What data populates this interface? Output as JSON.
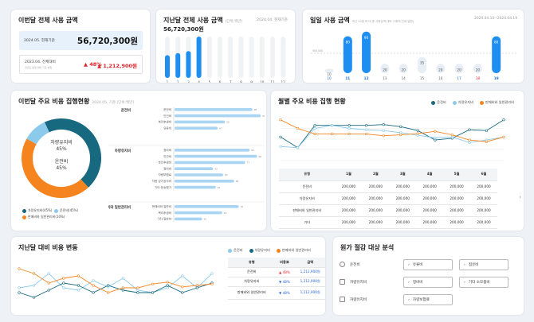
{
  "card1": {
    "title": "이번달 전체 사용 금액",
    "current_label": "2024.05. 현재기준",
    "current_amount": "56,720,300원",
    "prev_label": "2023.04. 전체대비",
    "prev_note": "전년도 동월 대비 기준 변동",
    "change_pct": "▲ 48%",
    "change_amount": "▲ 1,212,900원"
  },
  "card2": {
    "title": "지난달 전체 사용 금액",
    "unit": "(단위:백만)",
    "date": "2024.04. 현재기준",
    "amount": "56,720,300원",
    "chart_data": {
      "type": "bar",
      "categories": [
        "1",
        "2",
        "3",
        "4",
        "5",
        "6",
        "7",
        "8",
        "9",
        "10",
        "11",
        "12"
      ],
      "values": [
        5.5,
        6,
        6.5,
        10,
        0,
        0,
        0,
        0,
        0,
        0,
        0,
        0
      ]
    }
  },
  "card3": {
    "title": "일일 사용 금액",
    "note": "최근 10일 미 대 충 사용금액 대비 그래프(단위:일원)",
    "date_range": "2024.04.10~2024.04.19",
    "ref_label": "500,000",
    "chart_data": {
      "type": "bar",
      "categories": [
        "10",
        "11",
        "12",
        "13",
        "14",
        "15",
        "16",
        "17",
        "18",
        "19"
      ],
      "values": [
        10,
        80,
        90,
        20,
        20,
        35,
        20,
        20,
        20,
        80
      ]
    }
  },
  "card4": {
    "title": "이번달 주요 비용 집행현황",
    "note": "2024.05. 기준 (단위:백만)",
    "donut_label1": "차량유지비",
    "donut_pct1": "45%",
    "donut_label2": "운전비",
    "donut_pct2": "45%",
    "legend": [
      "차량유지비(45%)",
      "운전비(45%)",
      "판매비와 일반관리비(10%)"
    ],
    "chart_data": {
      "type": "pie",
      "slices": [
        {
          "name": "차량유지비",
          "value": 45
        },
        {
          "name": "운전비",
          "value": 45
        },
        {
          "name": "판매비와 일반관리비",
          "value": 10
        }
      ]
    },
    "groups": [
      {
        "name": "운전비",
        "items": [
          "운전비",
          "인건비",
          "복리후생비",
          "유류비"
        ],
        "values": [
          85,
          94,
          55,
          47
        ]
      },
      {
        "name": "차량유지비",
        "items": [
          "정비비",
          "인건비",
          "복리후생비",
          "정비비",
          "차량보험료",
          "차량 감가상각비",
          "기타 운송원가"
        ],
        "values": [
          82,
          90,
          77,
          42,
          53,
          65,
          45
        ]
      },
      {
        "name": "판매비와 일반관리비",
        "items": [
          "판매비와 일반비",
          "복리후생비",
          "기타 일반비"
        ],
        "values": [
          70,
          52,
          30
        ]
      }
    ]
  },
  "card5": {
    "title": "월별 주요 비용 집행 현황",
    "legend": [
      "운전비",
      "차량유지비",
      "판매비와 일반관리비"
    ],
    "chart_data": {
      "type": "line",
      "x": [
        "1",
        "2",
        "3",
        "4",
        "5",
        "6",
        "7",
        "8",
        "9",
        "10",
        "11",
        "12",
        "13",
        "14"
      ],
      "series": [
        {
          "name": "운전비",
          "values": [
            55,
            30,
            82,
            82,
            82,
            82,
            84,
            79,
            70,
            48,
            52,
            72,
            70,
            95
          ]
        },
        {
          "name": "차량유지비",
          "values": [
            33,
            30,
            75,
            82,
            75,
            72,
            70,
            65,
            59,
            53,
            55,
            42,
            48,
            55
          ]
        },
        {
          "name": "판매비와 일반관리비",
          "values": [
            95,
            75,
            62,
            62,
            62,
            62,
            58,
            60,
            63,
            68,
            60,
            48,
            44,
            55
          ]
        }
      ]
    },
    "table": {
      "headers": [
        "유형",
        "1월",
        "2월",
        "3월",
        "4월",
        "5월",
        "6월"
      ],
      "rows": [
        {
          "cells": [
            "운전비",
            "200,000",
            "200,000",
            "200,000",
            "200,000",
            "200,000",
            "200,000"
          ],
          "colors": [
            "",
            "",
            "red",
            "",
            "red",
            "",
            ""
          ]
        },
        {
          "cells": [
            "차량유지비",
            "200,000",
            "200,000",
            "200,000",
            "200,000",
            "200,000",
            "200,000"
          ],
          "colors": [
            "",
            "",
            "",
            "",
            "blue",
            "",
            "red"
          ]
        },
        {
          "cells": [
            "판매비와 일반관리비",
            "200,000",
            "200,000",
            "200,000",
            "200,000",
            "200,000",
            "200,000"
          ],
          "colors": [
            "",
            "blue",
            "",
            "",
            "",
            "",
            "blue"
          ]
        },
        {
          "cells": [
            "기타",
            "200,000",
            "200,000",
            "200,000",
            "200,000",
            "200,000",
            "200,000"
          ],
          "colors": [
            "",
            "",
            "red",
            "",
            "",
            "",
            "red"
          ]
        }
      ]
    }
  },
  "card6": {
    "title": "지난달 대비 비용 변동",
    "legend": [
      "운전비",
      "차량유지비",
      "판매비와 일반관리비"
    ],
    "chart_data": {
      "type": "line",
      "x": [
        "1",
        "2",
        "3",
        "4",
        "5",
        "6",
        "7",
        "8",
        "9",
        "10",
        "11",
        "12",
        "13",
        "14"
      ],
      "series": [
        {
          "name": "운전비",
          "values": [
            40,
            45,
            70,
            40,
            35,
            55,
            42,
            60,
            35,
            30,
            40,
            65,
            40,
            70
          ]
        },
        {
          "name": "차량유지비",
          "values": [
            30,
            20,
            35,
            50,
            45,
            30,
            45,
            35,
            30,
            30,
            45,
            30,
            40,
            50
          ]
        },
        {
          "name": "판매비와 일반관리비",
          "values": [
            80,
            70,
            50,
            60,
            65,
            45,
            30,
            40,
            40,
            48,
            52,
            42,
            45,
            48
          ]
        }
      ]
    },
    "table": {
      "headers": [
        "유형",
        "비용표",
        "금액"
      ],
      "rows": [
        {
          "type": "운전비",
          "pct": "▲ 48%",
          "amount": "1,212,900원",
          "dir": "up"
        },
        {
          "type": "차량유지비",
          "pct": "▼ 48%",
          "amount": "1,212,900원",
          "dir": "down"
        },
        {
          "type": "판매비와 일반관리비",
          "pct": "▼ 48%",
          "amount": "1,212,900원",
          "dir": "down"
        }
      ]
    }
  },
  "card7": {
    "title": "원가 절감 대상 분석",
    "rows": [
      {
        "label": "운전비",
        "icon": "clock-icon",
        "buttons": [
          "유류비",
          "접유비"
        ]
      },
      {
        "label": "차량유지비",
        "icon": "card-icon",
        "buttons": [
          "정비비",
          "기타 소모품비"
        ]
      },
      {
        "label": "차량유지비",
        "icon": "card-icon",
        "buttons": [
          "차량보험료"
        ]
      }
    ]
  },
  "colors": {
    "blue": "#1e8ef0",
    "teal": "#17697f",
    "orange": "#f5841f",
    "lightblue": "#8ccaec"
  }
}
